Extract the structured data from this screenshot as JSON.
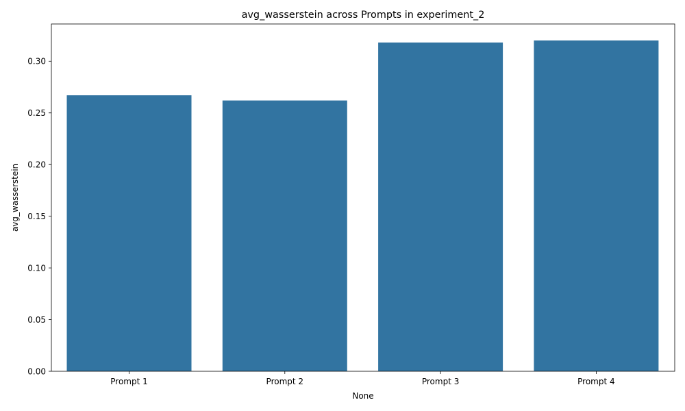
{
  "chart_data": {
    "type": "bar",
    "title": "avg_wasserstein across Prompts in experiment_2",
    "xlabel": "None",
    "ylabel": "avg_wasserstein",
    "categories": [
      "Prompt 1",
      "Prompt 2",
      "Prompt 3",
      "Prompt 4"
    ],
    "values": [
      0.267,
      0.262,
      0.318,
      0.32
    ],
    "ylim": [
      0,
      0.336
    ],
    "yticks": [
      0.0,
      0.05,
      0.1,
      0.15,
      0.2,
      0.25,
      0.3
    ],
    "ytick_labels": [
      "0.00",
      "0.05",
      "0.10",
      "0.15",
      "0.20",
      "0.25",
      "0.30"
    ],
    "bar_color": "#3274a1",
    "grid": false,
    "legend": "none"
  }
}
